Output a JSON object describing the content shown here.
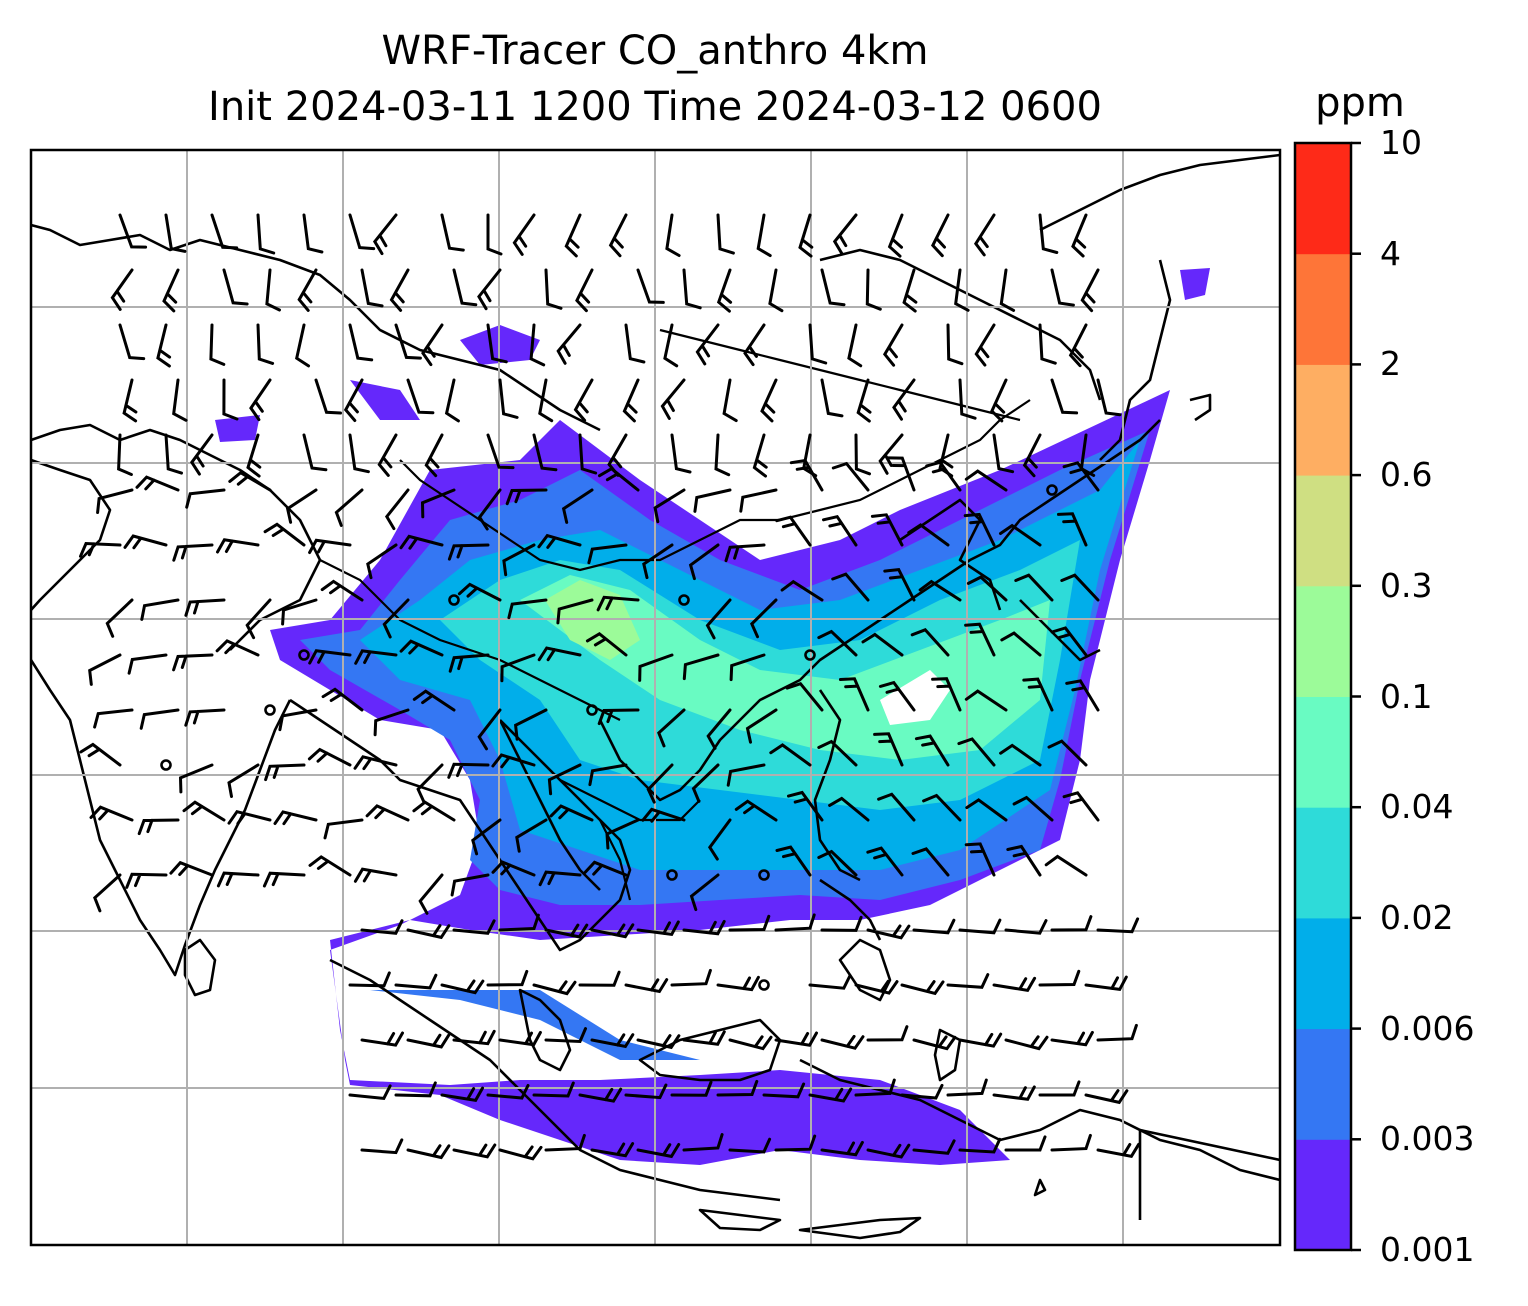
{
  "title": {
    "line1": "WRF-Tracer CO_anthro 4km",
    "line2": "Init 2024-03-11 1200 Time 2024-03-12 0600"
  },
  "colorbar": {
    "unit": "ppm",
    "levels": [
      "0.001",
      "0.003",
      "0.006",
      "0.02",
      "0.04",
      "0.1",
      "0.3",
      "0.6",
      "2",
      "4",
      "10"
    ],
    "colors": [
      "#6528fb",
      "#3477f3",
      "#01aeea",
      "#2edbd9",
      "#69fbc2",
      "#9cfb99",
      "#cfdf82",
      "#feae62",
      "#fe7538",
      "#fe2a18"
    ]
  },
  "map": {
    "layers": [
      "coastlines",
      "borders",
      "gridlines",
      "tracer-fill",
      "wind-barbs"
    ]
  }
}
